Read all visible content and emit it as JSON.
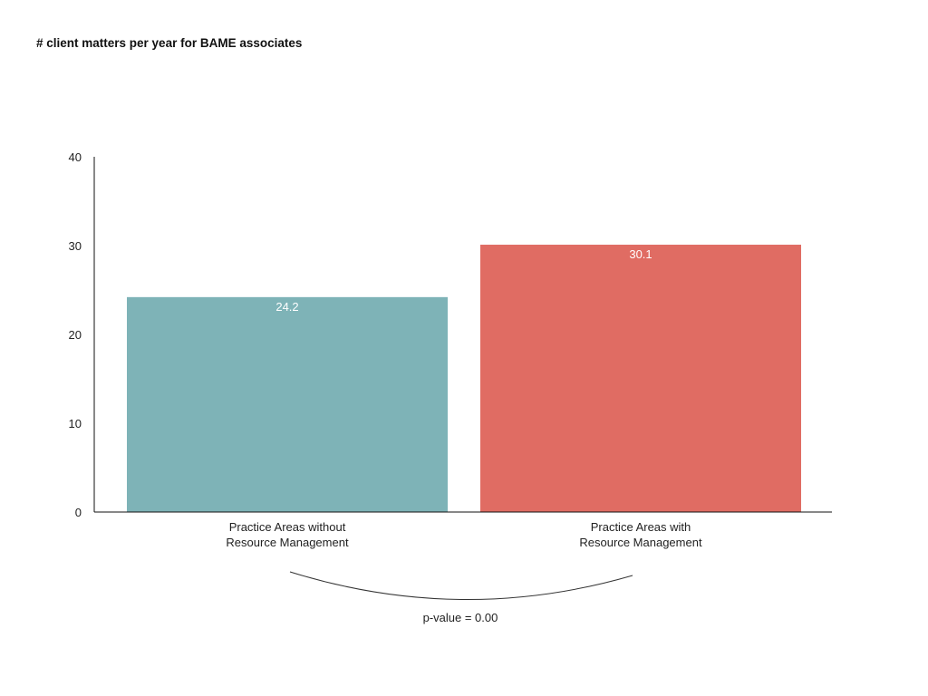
{
  "chart_data": {
    "type": "bar",
    "title": "# client matters per year for BAME associates",
    "categories": [
      [
        "Practice Areas without",
        "Resource Management"
      ],
      [
        "Practice Areas with",
        "Resource Management"
      ]
    ],
    "values": [
      24.2,
      30.1
    ],
    "value_labels": [
      "24.2",
      "30.1"
    ],
    "colors": [
      "#7eb3b7",
      "#e06c63"
    ],
    "ylim": [
      0,
      40
    ],
    "yticks": [
      0,
      10,
      20,
      30,
      40
    ],
    "grid": false,
    "legend": "none",
    "annotation": "p-value = 0.00"
  }
}
